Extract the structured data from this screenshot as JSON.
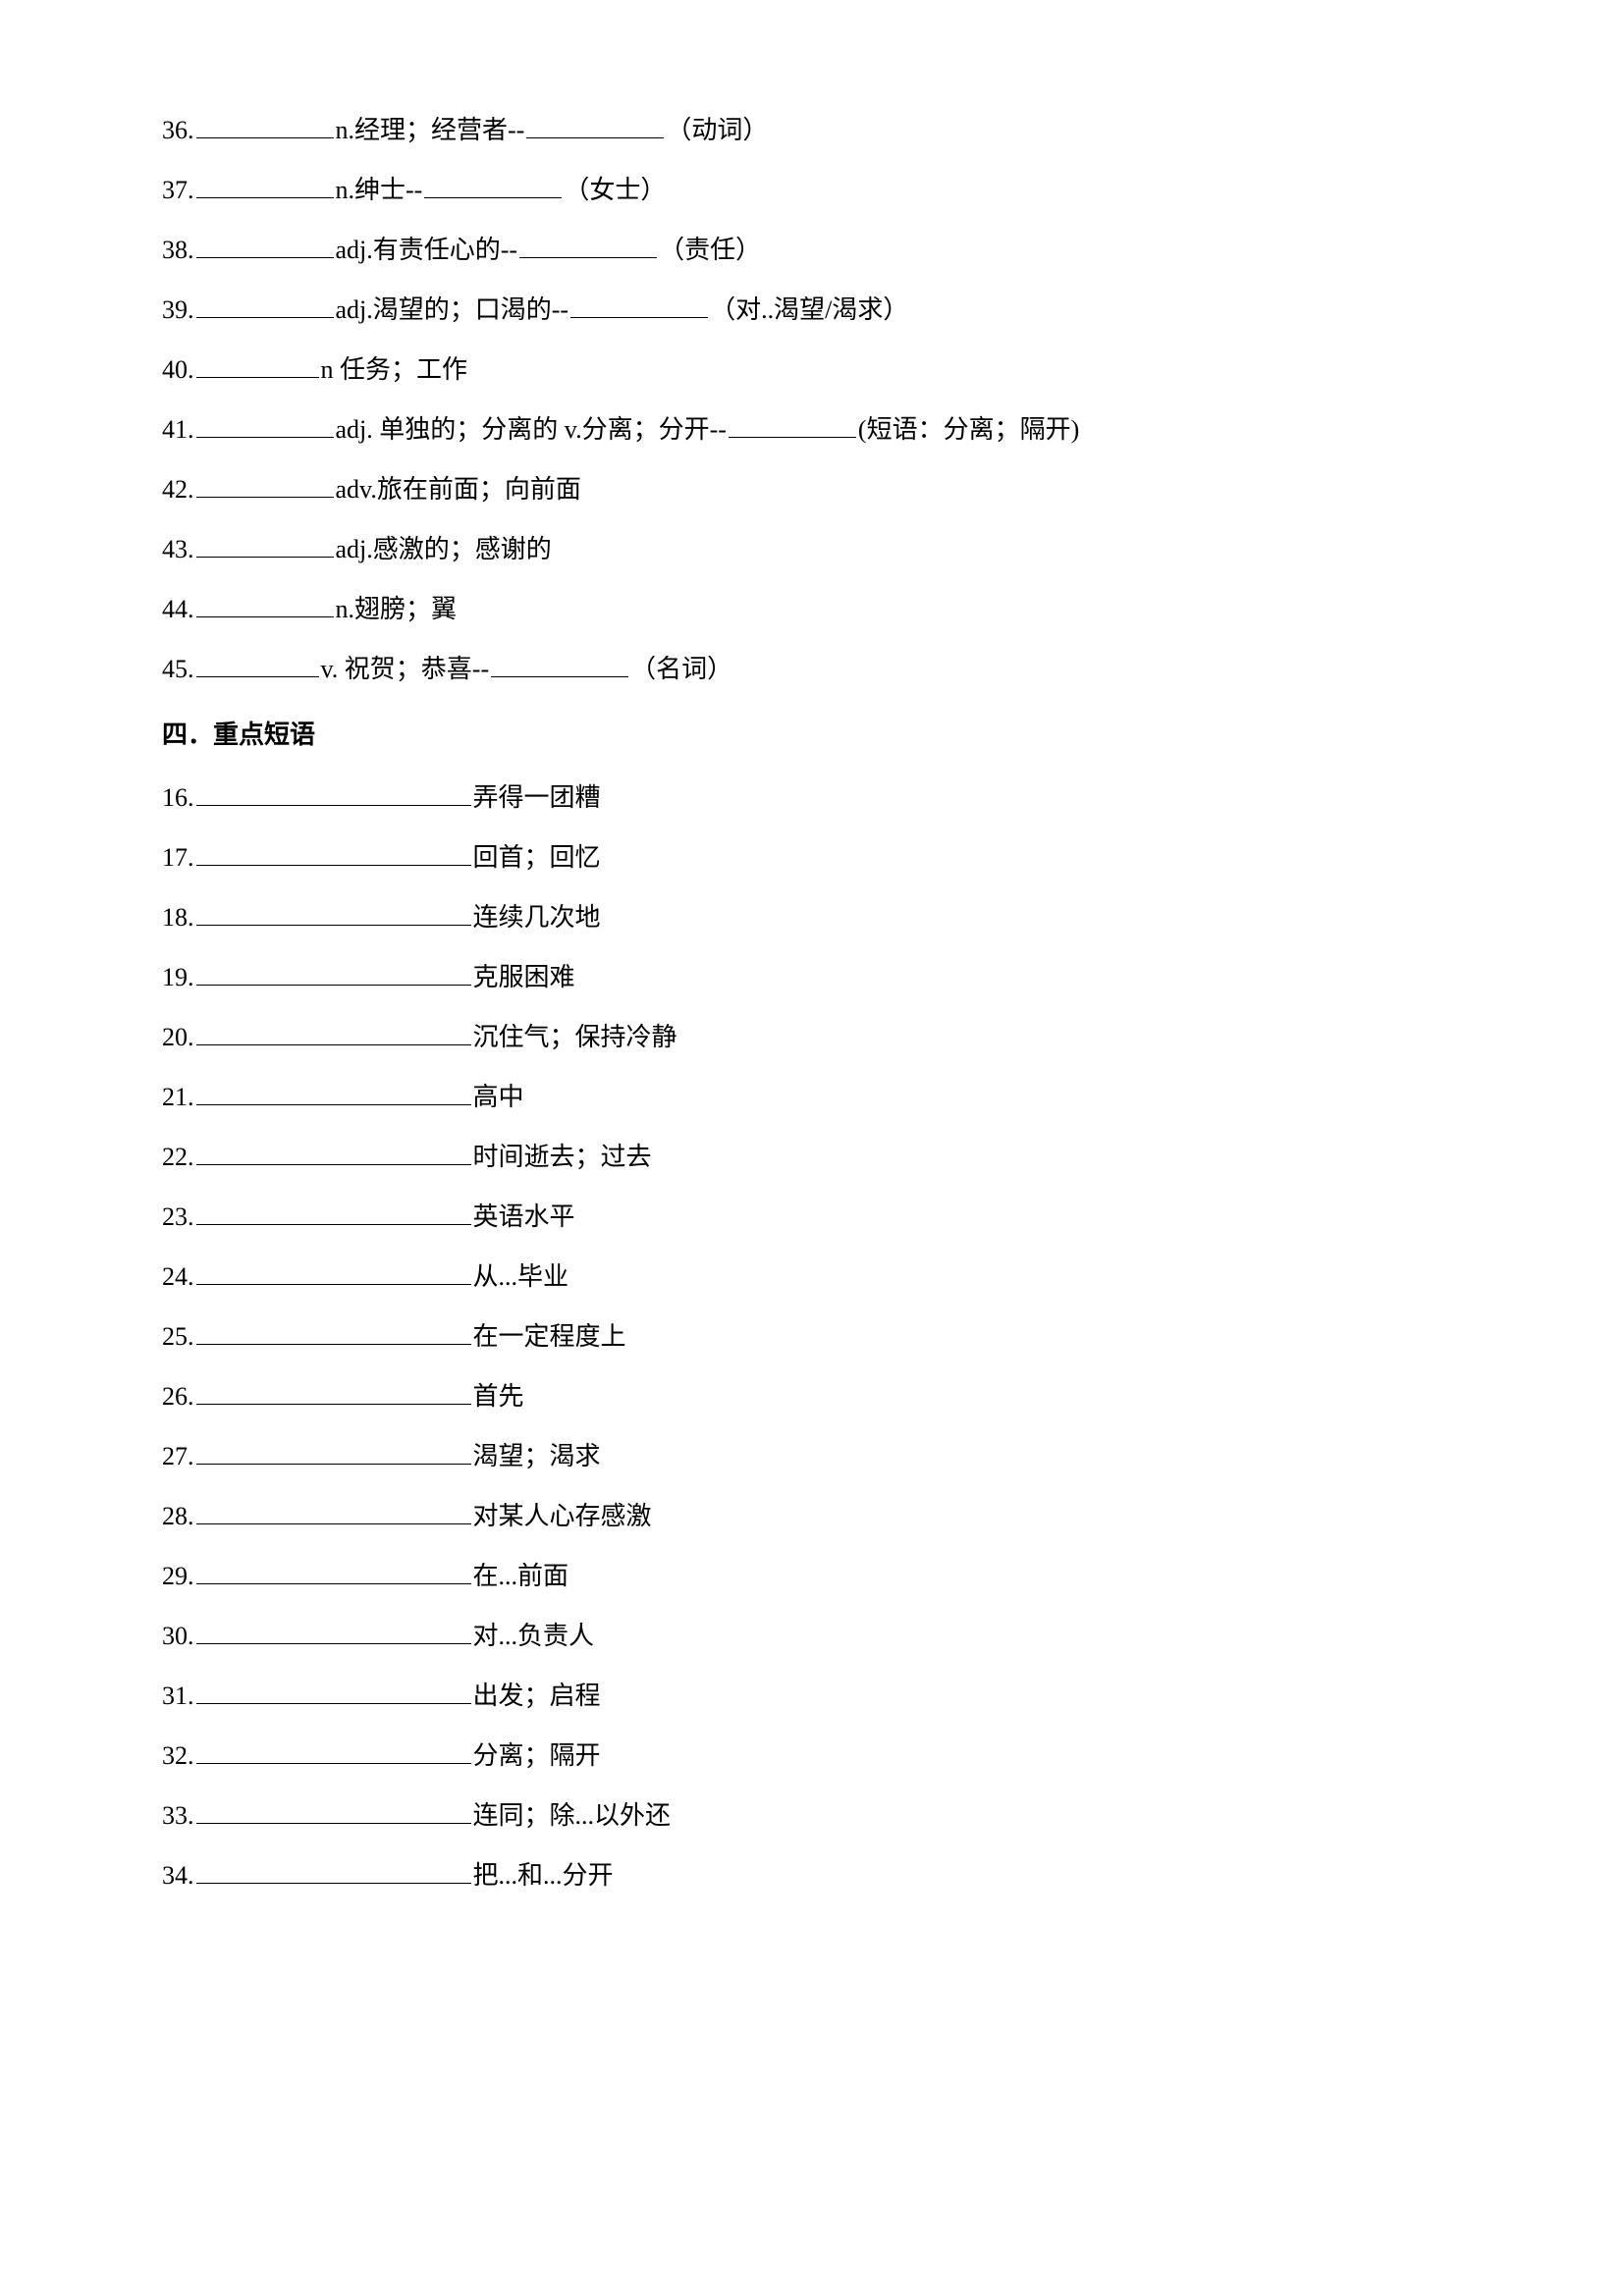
{
  "section1": [
    {
      "num": "36.",
      "blank1_w": 140,
      "mid": "n.经理；经营者--",
      "blank2_w": 140,
      "tail": "（动词）"
    },
    {
      "num": "37.",
      "blank1_w": 140,
      "mid": "n.绅士--",
      "blank2_w": 140,
      "tail": "（女士）"
    },
    {
      "num": "38.",
      "blank1_w": 140,
      "mid": "adj.有责任心的--",
      "blank2_w": 140,
      "tail": "（责任）"
    },
    {
      "num": "39.",
      "blank1_w": 140,
      "mid": "adj.渴望的；口渴的--",
      "blank2_w": 140,
      "tail": "（对..渴望/渴求）"
    },
    {
      "num": "40.",
      "blank1_w": 125,
      "mid": "n 任务；工作",
      "blank2_w": 0,
      "tail": ""
    },
    {
      "num": "41.",
      "blank1_w": 140,
      "mid": "adj. 单独的；分离的 v.分离；分开--",
      "blank2_w": 130,
      "tail": "(短语：分离；隔开)"
    },
    {
      "num": "42.",
      "blank1_w": 140,
      "mid": "adv.旅在前面；向前面",
      "blank2_w": 0,
      "tail": ""
    },
    {
      "num": "43.",
      "blank1_w": 140,
      "mid": "adj.感激的；感谢的",
      "blank2_w": 0,
      "tail": ""
    },
    {
      "num": "44.",
      "blank1_w": 140,
      "mid": "n.翅膀；翼",
      "blank2_w": 0,
      "tail": ""
    },
    {
      "num": "45.",
      "blank1_w": 125,
      "mid": "v. 祝贺；恭喜--",
      "blank2_w": 140,
      "tail": "（名词）"
    }
  ],
  "heading": "四．重点短语",
  "section2": [
    {
      "num": "16.",
      "text": "弄得一团糟"
    },
    {
      "num": "17.",
      "text": "回首；回忆"
    },
    {
      "num": "18.",
      "text": "连续几次地"
    },
    {
      "num": "19.",
      "text": "克服困难"
    },
    {
      "num": "20.",
      "text": "沉住气；保持冷静"
    },
    {
      "num": "21.",
      "text": "高中"
    },
    {
      "num": "22.",
      "text": "时间逝去；过去"
    },
    {
      "num": "23.",
      "text": "英语水平"
    },
    {
      "num": "24.",
      "text": "从...毕业"
    },
    {
      "num": "25.",
      "text": "在一定程度上"
    },
    {
      "num": "26.",
      "text": "首先"
    },
    {
      "num": "27.",
      "text": "渴望；渴求"
    },
    {
      "num": "28.",
      "text": "对某人心存感激"
    },
    {
      "num": "29.",
      "text": "在...前面"
    },
    {
      "num": "30.",
      "text": "对...负责人"
    },
    {
      "num": "31.",
      "text": "出发；启程"
    },
    {
      "num": "32.",
      "text": "分离；隔开"
    },
    {
      "num": "33.",
      "text": "连同；除...以外还"
    },
    {
      "num": "34.",
      "text": "把...和...分开"
    }
  ]
}
